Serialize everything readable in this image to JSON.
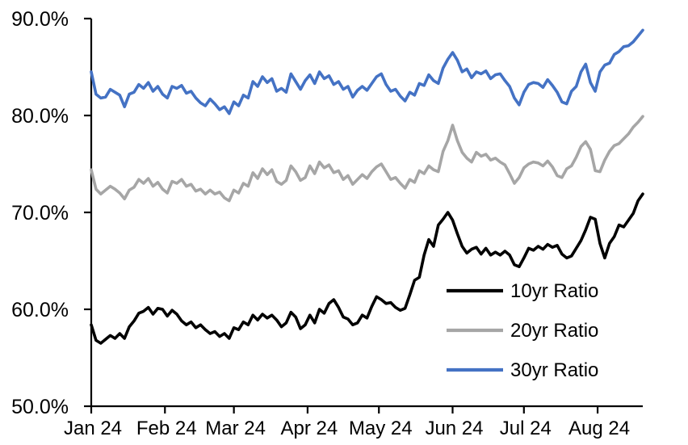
{
  "chart_data": {
    "type": "line",
    "title": "",
    "background": "#ffffff",
    "axis_color": "#000000",
    "x_axis": {
      "label": "",
      "unit": "days from Jan 1 2024",
      "total_days": 232,
      "tick_days": [
        0,
        31,
        60,
        91,
        121,
        152,
        182,
        213
      ],
      "tick_labels": [
        "Jan 24",
        "Feb 24",
        "Mar 24",
        "Apr 24",
        "May 24",
        "Jun 24",
        "Jul 24",
        "Aug 24"
      ]
    },
    "y_axis": {
      "label": "",
      "min": 50,
      "max": 90,
      "tick_values": [
        50,
        60,
        70,
        80,
        90
      ],
      "tick_labels": [
        "50.0%",
        "60.0%",
        "70.0%",
        "80.0%",
        "90.0%"
      ],
      "grid": false
    },
    "sample_step_days": 2,
    "legend": {
      "position": "inside-lower-right",
      "entries": [
        "10yr Ratio",
        "20yr Ratio",
        "30yr Ratio"
      ]
    },
    "series": [
      {
        "name": "10yr Ratio",
        "color": "#000000",
        "values": [
          58.4,
          56.8,
          56.5,
          56.9,
          57.3,
          57.0,
          57.5,
          57.0,
          58.2,
          58.8,
          59.6,
          59.8,
          60.2,
          59.5,
          60.1,
          60.0,
          59.3,
          59.9,
          59.5,
          58.8,
          58.4,
          58.7,
          58.1,
          58.4,
          57.9,
          57.5,
          57.7,
          57.2,
          57.5,
          57.0,
          58.1,
          57.9,
          58.7,
          58.4,
          59.4,
          58.9,
          59.5,
          59.1,
          59.4,
          58.9,
          58.2,
          58.6,
          59.7,
          59.2,
          58.0,
          58.4,
          59.4,
          58.6,
          60.0,
          59.6,
          60.6,
          61.0,
          60.2,
          59.2,
          59.0,
          58.4,
          58.6,
          59.4,
          59.1,
          60.3,
          61.3,
          61.0,
          60.6,
          60.7,
          60.2,
          59.9,
          60.1,
          61.5,
          63.0,
          63.3,
          65.6,
          67.2,
          66.5,
          68.7,
          69.3,
          70.0,
          69.2,
          67.8,
          66.5,
          65.8,
          66.2,
          66.4,
          65.7,
          66.3,
          65.6,
          65.9,
          65.6,
          66.0,
          65.6,
          64.6,
          64.4,
          65.3,
          66.3,
          66.1,
          66.5,
          66.2,
          66.7,
          66.4,
          66.6,
          65.7,
          65.3,
          65.5,
          66.3,
          67.1,
          68.2,
          69.5,
          69.3,
          66.8,
          65.3,
          66.8,
          67.5,
          68.7,
          68.5,
          69.2,
          69.9,
          71.2,
          71.9
        ]
      },
      {
        "name": "20yr Ratio",
        "color": "#A6A6A6",
        "values": [
          74.4,
          72.4,
          71.9,
          72.3,
          72.7,
          72.4,
          72.0,
          71.4,
          72.3,
          72.6,
          73.4,
          73.0,
          73.5,
          72.7,
          73.1,
          72.4,
          72.0,
          73.2,
          73.0,
          73.4,
          72.7,
          72.9,
          72.2,
          72.4,
          71.9,
          72.3,
          71.9,
          72.1,
          71.5,
          71.2,
          72.3,
          72.0,
          73.0,
          72.7,
          74.1,
          73.5,
          74.5,
          73.9,
          74.4,
          73.2,
          72.9,
          73.3,
          74.8,
          74.2,
          73.3,
          73.6,
          74.8,
          74.0,
          75.2,
          74.6,
          74.9,
          74.1,
          74.3,
          73.4,
          73.8,
          72.9,
          73.4,
          73.9,
          73.5,
          74.2,
          74.7,
          75.0,
          74.2,
          73.4,
          73.6,
          73.0,
          72.5,
          73.4,
          73.1,
          74.3,
          74.0,
          74.8,
          74.4,
          74.2,
          76.3,
          77.4,
          79.0,
          77.4,
          76.2,
          75.6,
          75.2,
          76.2,
          75.8,
          76.0,
          75.4,
          75.6,
          75.2,
          74.9,
          74.0,
          73.0,
          73.6,
          74.6,
          75.0,
          75.2,
          75.1,
          74.8,
          75.3,
          74.7,
          73.8,
          73.6,
          74.5,
          74.8,
          75.7,
          76.8,
          77.3,
          76.5,
          74.3,
          74.2,
          75.4,
          76.3,
          76.9,
          77.1,
          77.6,
          78.1,
          78.8,
          79.3,
          79.9
        ]
      },
      {
        "name": "30yr Ratio",
        "color": "#4472C4",
        "values": [
          84.5,
          82.2,
          81.8,
          81.9,
          82.7,
          82.4,
          82.1,
          80.9,
          82.2,
          82.4,
          83.2,
          82.8,
          83.4,
          82.5,
          83.0,
          82.2,
          81.8,
          83.0,
          82.8,
          83.1,
          82.3,
          82.5,
          81.8,
          81.3,
          81.0,
          81.7,
          81.2,
          80.6,
          80.9,
          80.2,
          81.4,
          81.0,
          82.1,
          81.8,
          83.5,
          83.0,
          84.0,
          83.4,
          83.8,
          82.5,
          82.8,
          82.4,
          84.3,
          83.5,
          82.7,
          83.6,
          84.2,
          83.3,
          84.5,
          83.8,
          84.1,
          83.2,
          83.5,
          82.7,
          83.0,
          81.9,
          82.6,
          83.0,
          82.6,
          83.3,
          84.0,
          84.3,
          83.2,
          82.5,
          82.7,
          82.0,
          81.5,
          82.4,
          82.1,
          83.3,
          83.1,
          84.2,
          83.6,
          83.3,
          84.9,
          85.8,
          86.5,
          85.7,
          84.5,
          84.8,
          83.9,
          84.5,
          84.3,
          84.6,
          83.8,
          84.2,
          84.3,
          83.6,
          83.0,
          81.8,
          81.1,
          82.4,
          83.2,
          83.4,
          83.3,
          82.9,
          83.7,
          83.1,
          82.4,
          81.4,
          81.2,
          82.5,
          83.0,
          84.5,
          85.3,
          83.4,
          82.5,
          84.5,
          85.2,
          85.4,
          86.3,
          86.6,
          87.1,
          87.2,
          87.6,
          88.2,
          88.8
        ]
      }
    ]
  }
}
